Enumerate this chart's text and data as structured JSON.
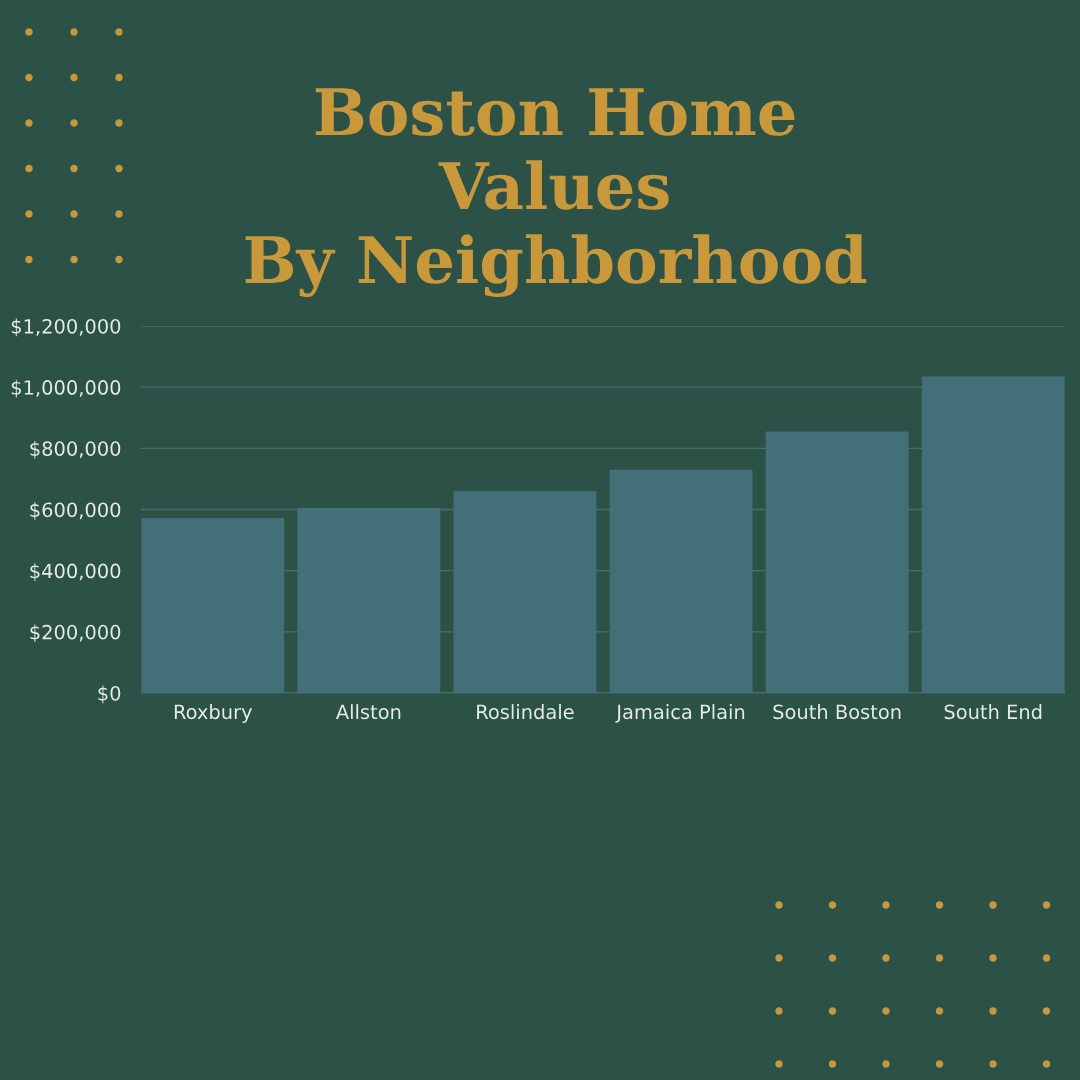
{
  "chart_data": {
    "type": "bar",
    "title": "Boston Home\nValues\nBy Neighborhood",
    "categories": [
      "Roxbury",
      "Allston",
      "Roslindale",
      "Jamaica Plain",
      "South Boston",
      "South End"
    ],
    "values": [
      572000,
      605000,
      660000,
      730000,
      855000,
      1035000
    ],
    "color": "#437078",
    "ylim": [
      0,
      1200000
    ],
    "yticks": [
      {
        "value": 0,
        "label": "$0"
      },
      {
        "value": 200000,
        "label": "$200,000"
      },
      {
        "value": 400000,
        "label": "$400,000"
      },
      {
        "value": 600000,
        "label": "$600,000"
      },
      {
        "value": 800000,
        "label": "$800,000"
      },
      {
        "value": 1000000,
        "label": "$1,000,000"
      },
      {
        "value": 1200000,
        "label": "$1,200,000"
      }
    ],
    "grid": "y",
    "legend": false
  }
}
